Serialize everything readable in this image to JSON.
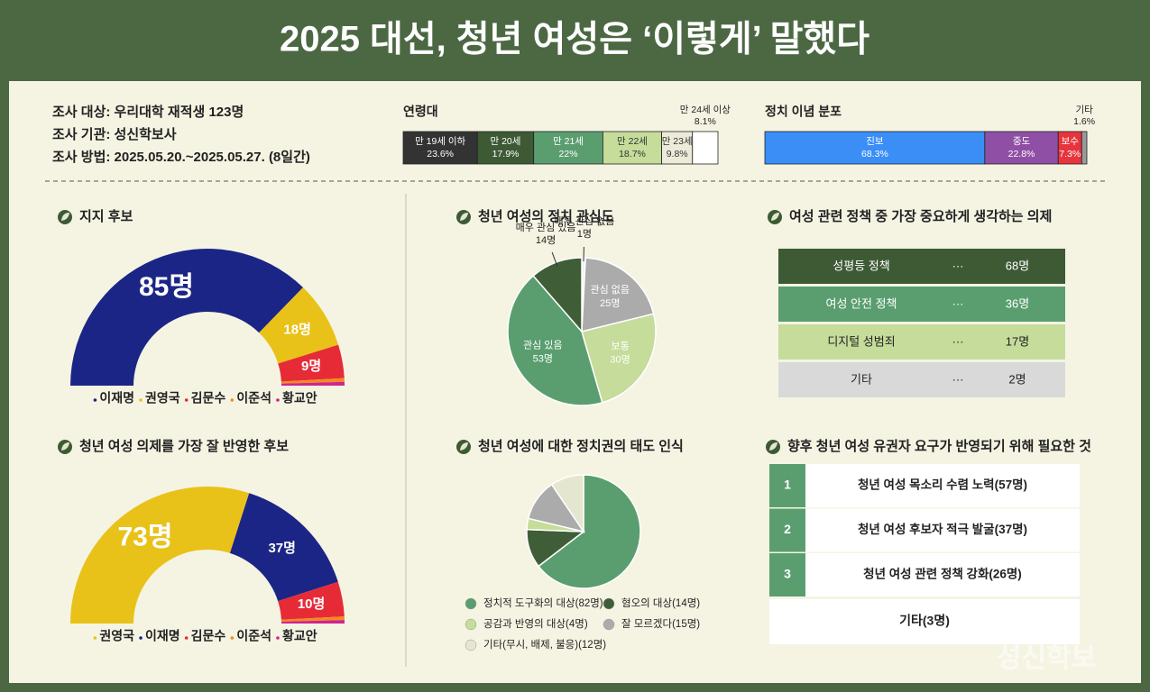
{
  "title": "2025 대선, 청년 여성은 ‘이렇게’ 말했다",
  "survey": [
    "조사 대상: 우리대학 재적생 123명",
    "조사 기관: 성신학보사",
    "조사 방법: 2025.05.20.~2025.05.27. (8일간)"
  ],
  "chart_data": [
    {
      "type": "stacked-bar",
      "title": "연령대",
      "categories": [
        "만 19세 이하",
        "만 20세",
        "만 21세",
        "만 22세",
        "만 23세",
        "만 24세 이상"
      ],
      "values": [
        23.6,
        17.9,
        22,
        18.7,
        9.8,
        8.1
      ],
      "value_labels": [
        "23.6%",
        "17.9%",
        "22%",
        "18.7%",
        "9.8%",
        "8.1%"
      ],
      "colors": [
        "#333333",
        "#3d5a35",
        "#5a9e6f",
        "#c5dc9a",
        "#ecebd9",
        "#ffffff"
      ]
    },
    {
      "type": "stacked-bar",
      "title": "정치 이념 분포",
      "categories": [
        "진보",
        "중도",
        "보수",
        "기타"
      ],
      "values": [
        68.3,
        22.8,
        7.3,
        1.6
      ],
      "value_labels": [
        "68.3%",
        "22.8%",
        "7.3%",
        "1.6%"
      ],
      "colors": [
        "#3a8ef6",
        "#8e4fa5",
        "#e8343c",
        "#9a9a9a"
      ]
    },
    {
      "type": "semi-donut",
      "title": "지지 후보",
      "categories": [
        "이재명",
        "권영국",
        "김문수",
        "이준석",
        "황교안"
      ],
      "values": [
        85,
        18,
        9,
        1,
        1
      ],
      "value_labels": [
        "85명",
        "18명",
        "9명",
        null,
        null
      ],
      "colors": [
        "#1b2585",
        "#e9c219",
        "#e62b37",
        "#f28c1e",
        "#d0248f"
      ]
    },
    {
      "type": "semi-donut",
      "title": "청년 여성 의제를 가장 잘 반영한 후보",
      "categories": [
        "권영국",
        "이재명",
        "김문수",
        "이준석",
        "황교안"
      ],
      "values": [
        73,
        37,
        10,
        1,
        1
      ],
      "value_labels": [
        "73명",
        "37명",
        "10명",
        null,
        null
      ],
      "colors": [
        "#e9c219",
        "#1b2585",
        "#e62b37",
        "#f28c1e",
        "#d0248f"
      ]
    },
    {
      "type": "pie",
      "title": "청년 여성의 정치 관심도",
      "categories": [
        "매우 관심 없음",
        "관심 없음",
        "보통",
        "관심 있음",
        "매우 관심 있음"
      ],
      "values": [
        1,
        25,
        30,
        53,
        14
      ],
      "value_labels": [
        "1명",
        "25명",
        "30명",
        "53명",
        "14명"
      ],
      "colors": [
        "#f2f2f2",
        "#ababab",
        "#c5dc9a",
        "#5a9e6f",
        "#3f5e38"
      ]
    },
    {
      "type": "pie",
      "title": "청년 여성에 대한 정치권의 태도 인식",
      "categories": [
        "정치적 도구화의 대상(82명)",
        "혐오의 대상(14명)",
        "공감과 반영의 대상(4명)",
        "잘 모르겠다(15명)",
        "기타(무시, 배제, 불응)(12명)"
      ],
      "values": [
        82,
        14,
        4,
        15,
        12
      ],
      "colors": [
        "#5a9e6f",
        "#3f5e38",
        "#c5dc9a",
        "#ababab",
        "#e4e6cf"
      ],
      "legend": "bottom"
    }
  ],
  "agenda": {
    "title": "여성 관련 정책 중 가장 중요하게 생각하는 의제",
    "rows": [
      [
        "성평등 정책",
        "68명"
      ],
      [
        "여성 안전 정책",
        "36명"
      ],
      [
        "디지털 성범죄",
        "17명"
      ],
      [
        "기타",
        "2명"
      ]
    ],
    "colors": [
      "#3d5a35",
      "#5a9e6f",
      "#c5dc9a",
      "#d9d9d9"
    ]
  },
  "needs": {
    "title": "향후 청년 여성 유권자 요구가 반영되기 위해 필요한 것",
    "rows": [
      [
        "1",
        "청년 여성 목소리 수렴 노력(57명)"
      ],
      [
        "2",
        "청년 여성 후보자 적극 발굴(37명)"
      ],
      [
        "3",
        "청년 여성 관련 정책 강화(26명)"
      ]
    ],
    "other": "기타(3명)"
  },
  "watermark": "성신학보"
}
